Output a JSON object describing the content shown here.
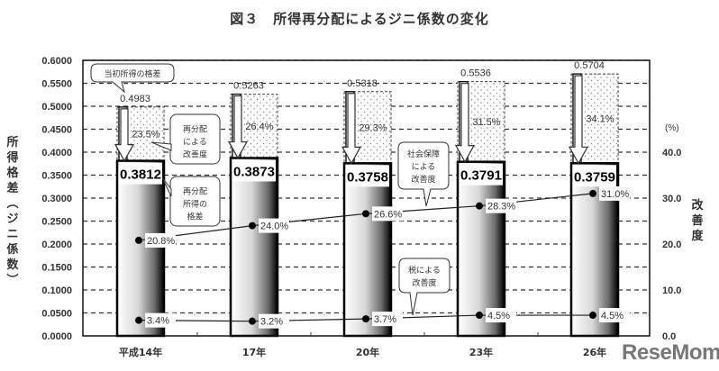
{
  "chart_data": {
    "type": "bar",
    "title": "図３　所得再分配によるジニ係数の変化",
    "xlabel": "",
    "ylabel": "所得格差（ジニ係数）",
    "ylabel_right": "改善度",
    "ylabel_right_unit": "(%)",
    "ylim": [
      0,
      0.6
    ],
    "ylim_right": [
      0,
      60
    ],
    "y_ticks": [
      "0.0000",
      "0.0500",
      "0.1000",
      "0.1500",
      "0.2000",
      "0.2500",
      "0.3000",
      "0.3500",
      "0.4000",
      "0.4500",
      "0.5000",
      "0.5500",
      "0.6000"
    ],
    "y_ticks_right": [
      "0.0",
      "10.0",
      "20.0",
      "30.0",
      "40.0"
    ],
    "grid": true,
    "categories": [
      "平成14年",
      "17年",
      "20年",
      "23年",
      "26年"
    ],
    "series": [
      {
        "name": "当初所得の格差",
        "kind": "bar",
        "axis": "left",
        "values": [
          0.4983,
          0.5263,
          0.5318,
          0.5536,
          0.5704
        ],
        "labels": [
          "0.4983",
          "0.5263",
          "0.5318",
          "0.5536",
          "0.5704"
        ]
      },
      {
        "name": "再分配所得の格差",
        "kind": "bar",
        "axis": "left",
        "values": [
          0.3812,
          0.3873,
          0.3758,
          0.3791,
          0.3759
        ],
        "labels": [
          "0.3812",
          "0.3873",
          "0.3758",
          "0.3791",
          "0.3759"
        ]
      },
      {
        "name": "再分配による改善度",
        "kind": "annotation",
        "axis": "right",
        "values": [
          23.5,
          26.4,
          29.3,
          31.5,
          34.1
        ],
        "labels": [
          "23.5%",
          "26.4%",
          "29.3%",
          "31.5%",
          "34.1%"
        ]
      },
      {
        "name": "社会保障による改善度",
        "kind": "line",
        "axis": "right",
        "values": [
          20.8,
          24.0,
          26.6,
          28.3,
          31.0
        ],
        "labels": [
          "20.8%",
          "24.0%",
          "26.6%",
          "28.3%",
          "31.0%"
        ]
      },
      {
        "name": "税による改善度",
        "kind": "line",
        "axis": "right",
        "values": [
          3.4,
          3.2,
          3.7,
          4.5,
          4.5
        ],
        "labels": [
          "3.4%",
          "3.2%",
          "3.7%",
          "4.5%",
          "4.5%"
        ]
      }
    ],
    "callouts": [
      {
        "text": [
          "当初所得の格差"
        ],
        "target": "当初所得の格差"
      },
      {
        "text": [
          "再分配",
          "による",
          "改善度"
        ],
        "target": "再分配による改善度"
      },
      {
        "text": [
          "再分配",
          "所得の",
          "格差"
        ],
        "target": "再分配所得の格差"
      },
      {
        "text": [
          "社会保障",
          "による",
          "改善度"
        ],
        "target": "社会保障による改善度"
      },
      {
        "text": [
          "税による",
          "改善度"
        ],
        "target": "税による改善度"
      }
    ]
  },
  "labels": {
    "title": "図３　所得再分配によるジニ係数の変化",
    "ylabel_left_chars": [
      "所",
      "得",
      "格",
      "差",
      "︵",
      "ジ",
      "ニ",
      "係",
      "数",
      "︶"
    ],
    "ylabel_right_chars": [
      "改",
      "善",
      "度"
    ],
    "right_unit": "(%)",
    "watermark": "ReseMom"
  }
}
